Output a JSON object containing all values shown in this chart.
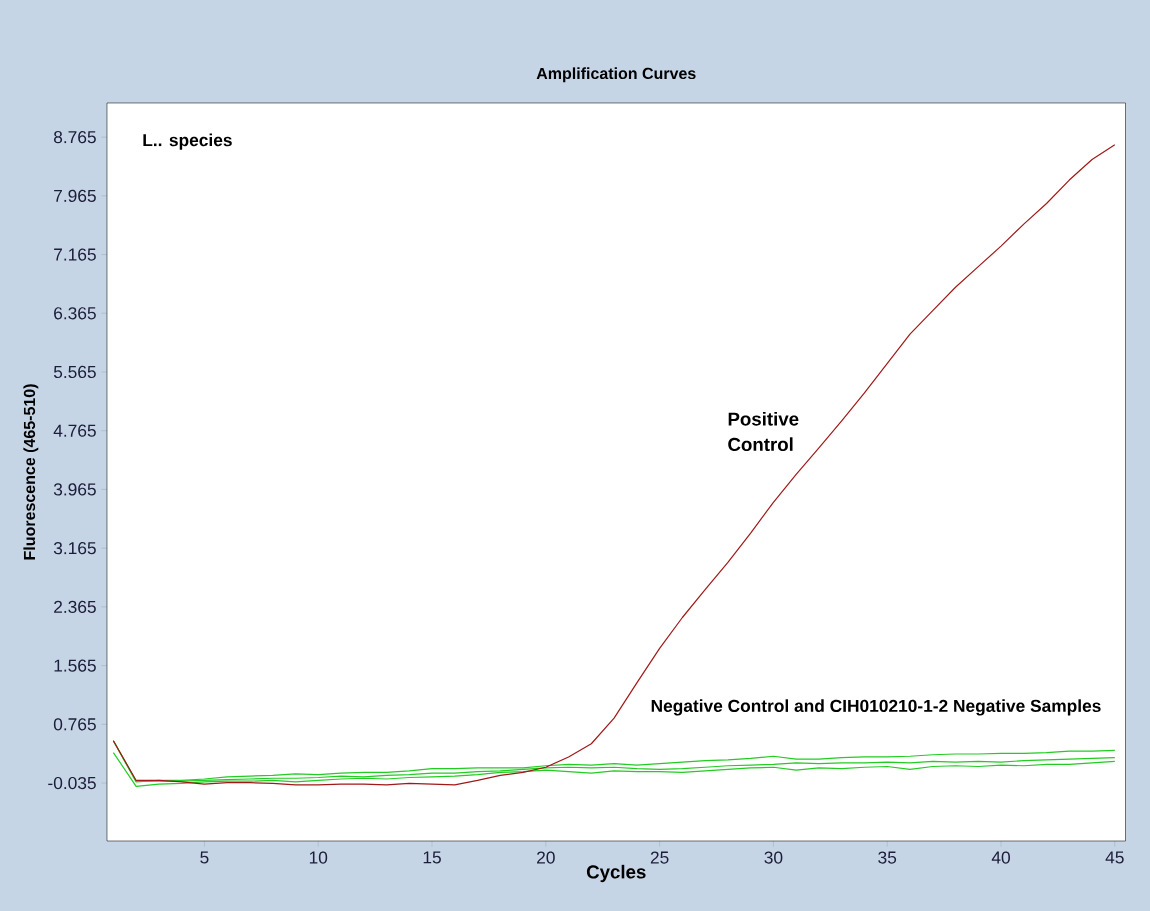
{
  "chart_data": {
    "type": "line",
    "title": "Amplification Curves",
    "xlabel": "Cycles",
    "ylabel": "Fluorescence (465-510)",
    "x": [
      1,
      2,
      3,
      4,
      5,
      6,
      7,
      8,
      9,
      10,
      11,
      12,
      13,
      14,
      15,
      16,
      17,
      18,
      19,
      20,
      21,
      22,
      23,
      24,
      25,
      26,
      27,
      28,
      29,
      30,
      31,
      32,
      33,
      34,
      35,
      36,
      37,
      38,
      39,
      40,
      41,
      42,
      43,
      44,
      45
    ],
    "series": [
      {
        "color": "#22cc22",
        "values": [
          0.54,
          -0.02,
          0.0,
          0.0,
          0.02,
          0.05,
          0.06,
          0.07,
          0.09,
          0.08,
          0.1,
          0.11,
          0.11,
          0.13,
          0.16,
          0.16,
          0.17,
          0.17,
          0.17,
          0.2,
          0.22,
          0.21,
          0.23,
          0.21,
          0.23,
          0.25,
          0.27,
          0.28,
          0.3,
          0.33,
          0.29,
          0.29,
          0.31,
          0.32,
          0.32,
          0.33,
          0.35,
          0.36,
          0.36,
          0.37,
          0.37,
          0.38,
          0.4,
          0.4,
          0.41
        ]
      },
      {
        "color": "#22cc22",
        "values": [
          0.54,
          -0.01,
          -0.01,
          -0.01,
          0.0,
          0.01,
          0.02,
          0.03,
          0.03,
          0.04,
          0.06,
          0.05,
          0.07,
          0.08,
          0.1,
          0.1,
          0.12,
          0.13,
          0.15,
          0.17,
          0.18,
          0.17,
          0.18,
          0.16,
          0.15,
          0.16,
          0.18,
          0.2,
          0.21,
          0.22,
          0.24,
          0.23,
          0.24,
          0.24,
          0.25,
          0.24,
          0.26,
          0.25,
          0.26,
          0.25,
          0.27,
          0.28,
          0.29,
          0.3,
          0.31
        ]
      },
      {
        "color": "#22cc22",
        "values": [
          0.38,
          -0.08,
          -0.05,
          -0.04,
          -0.02,
          -0.01,
          -0.01,
          0.0,
          -0.02,
          0.0,
          0.02,
          0.03,
          0.02,
          0.04,
          0.05,
          0.06,
          0.08,
          0.11,
          0.12,
          0.14,
          0.12,
          0.1,
          0.13,
          0.12,
          0.12,
          0.11,
          0.13,
          0.15,
          0.17,
          0.18,
          0.14,
          0.17,
          0.16,
          0.18,
          0.19,
          0.15,
          0.19,
          0.2,
          0.19,
          0.21,
          0.2,
          0.22,
          0.22,
          0.24,
          0.26
        ]
      },
      {
        "name": "Positive Control",
        "color": "#a01818",
        "values": [
          0.54,
          0.0,
          0.0,
          -0.02,
          -0.05,
          -0.03,
          -0.03,
          -0.04,
          -0.06,
          -0.06,
          -0.05,
          -0.05,
          -0.06,
          -0.04,
          -0.05,
          -0.06,
          0.0,
          0.07,
          0.11,
          0.18,
          0.32,
          0.5,
          0.85,
          1.33,
          1.8,
          2.22,
          2.6,
          2.97,
          3.37,
          3.79,
          4.17,
          4.53,
          4.9,
          5.28,
          5.68,
          6.08,
          6.4,
          6.72,
          7.0,
          7.28,
          7.58,
          7.86,
          8.18,
          8.46,
          8.66
        ]
      }
    ],
    "xlim": [
      0.72,
      45.47
    ],
    "ylim": [
      -0.825,
      9.23
    ],
    "xticks": [
      5,
      10,
      15,
      20,
      25,
      30,
      35,
      40,
      45
    ],
    "yticks": [
      -0.035,
      0.765,
      1.565,
      2.365,
      3.165,
      3.965,
      4.765,
      5.565,
      6.365,
      7.165,
      7.965,
      8.765
    ],
    "annotations": [
      "L.. species",
      "Negative Control and CIH010210-1-2 Negative Samples"
    ],
    "grid": false,
    "marker": "none",
    "line_style": "solid"
  }
}
